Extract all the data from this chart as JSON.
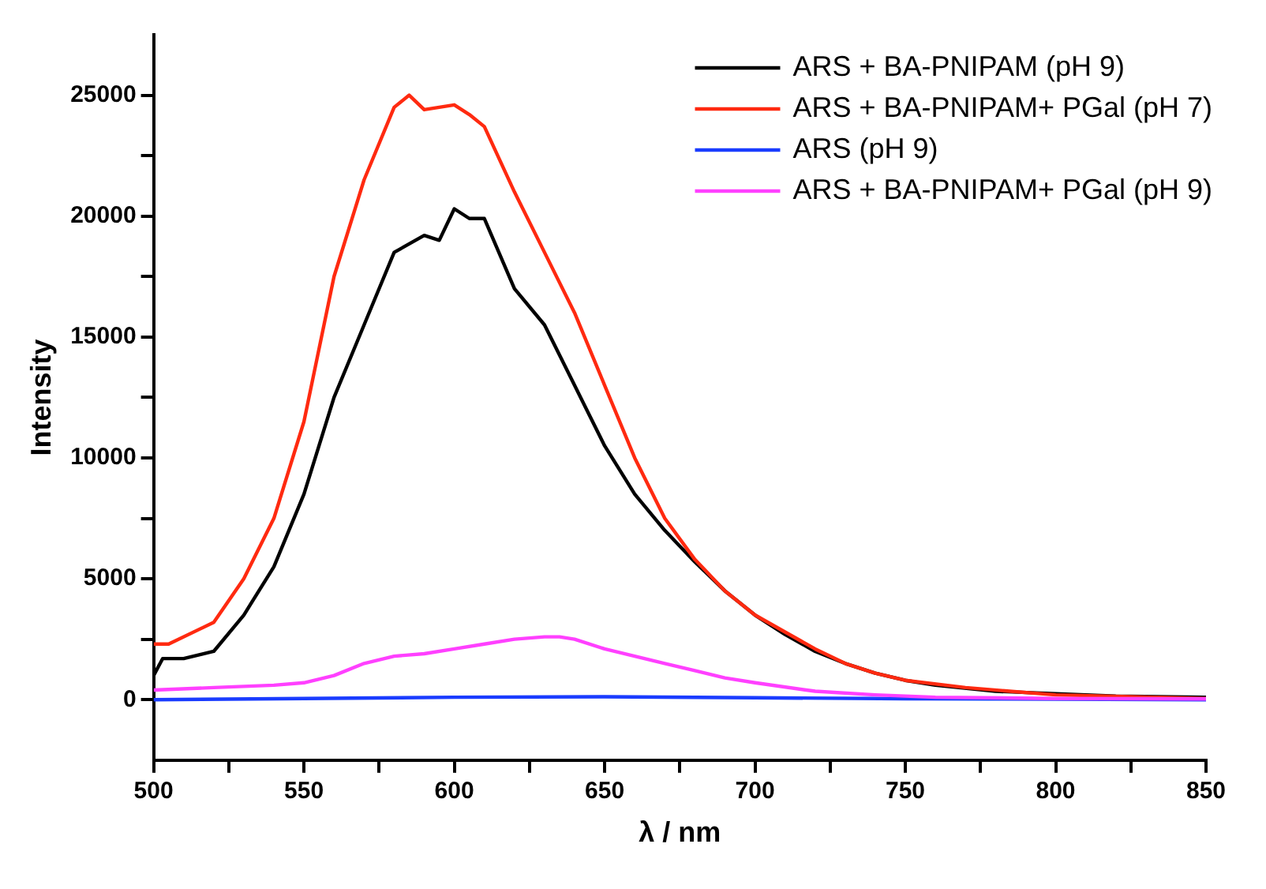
{
  "chart_data": {
    "type": "line",
    "xlabel": "λ / nm",
    "ylabel": "Intensity",
    "xlim": [
      500,
      850
    ],
    "ylim": [
      -2500,
      27500
    ],
    "xticks": [
      500,
      {
        "value": 525,
        "label": null
      },
      550,
      {
        "value": 575,
        "label": null
      },
      600,
      {
        "value": 625,
        "label": null
      },
      650,
      {
        "value": 675,
        "label": null
      },
      700,
      {
        "value": 725,
        "label": null
      },
      750,
      {
        "value": 775,
        "label": null
      },
      800,
      {
        "value": 825,
        "label": null
      },
      850
    ],
    "yticks": [
      0,
      {
        "value": 2500,
        "label": null
      },
      5000,
      {
        "value": 7500,
        "label": null
      },
      10000,
      {
        "value": 12500,
        "label": null
      },
      15000,
      {
        "value": 17500,
        "label": null
      },
      20000,
      {
        "value": 22500,
        "label": null
      },
      25000
    ],
    "grid": false,
    "legend": "top right",
    "marker": "none",
    "line_style": "solid",
    "series": [
      {
        "name": "ARS + BA-PNIPAM (pH 9)",
        "color": "#000000",
        "x": [
          500,
          503,
          510,
          520,
          530,
          540,
          550,
          560,
          570,
          580,
          590,
          595,
          600,
          605,
          610,
          620,
          630,
          640,
          650,
          660,
          670,
          680,
          690,
          700,
          710,
          720,
          730,
          740,
          750,
          760,
          780,
          800,
          820,
          850
        ],
        "values": [
          1000,
          1700,
          1700,
          2000,
          3500,
          5500,
          8500,
          12500,
          15500,
          18500,
          19200,
          19000,
          20300,
          19900,
          19900,
          17000,
          15500,
          13000,
          10500,
          8500,
          7000,
          5700,
          4500,
          3500,
          2700,
          2000,
          1500,
          1100,
          800,
          600,
          350,
          250,
          150,
          100
        ]
      },
      {
        "name": "ARS + BA-PNIPAM+ PGal (pH 7)",
        "color": "#ff2a10",
        "x": [
          500,
          505,
          520,
          530,
          540,
          550,
          560,
          570,
          580,
          585,
          590,
          595,
          600,
          605,
          610,
          620,
          630,
          640,
          650,
          660,
          670,
          680,
          690,
          700,
          710,
          720,
          730,
          740,
          750,
          770,
          800,
          850
        ],
        "values": [
          2300,
          2300,
          3200,
          5000,
          7500,
          11500,
          17500,
          21500,
          24500,
          25000,
          24400,
          24500,
          24600,
          24200,
          23700,
          21000,
          18500,
          16000,
          13000,
          10000,
          7500,
          5800,
          4500,
          3500,
          2800,
          2100,
          1500,
          1100,
          800,
          500,
          200,
          50
        ]
      },
      {
        "name": "ARS (pH 9)",
        "color": "#1a3cff",
        "x": [
          500,
          550,
          600,
          650,
          700,
          750,
          800,
          850
        ],
        "values": [
          0,
          50,
          100,
          120,
          80,
          40,
          20,
          0
        ]
      },
      {
        "name": "ARS + BA-PNIPAM+ PGal (pH 9)",
        "color": "#ff40ff",
        "x": [
          500,
          520,
          540,
          550,
          560,
          570,
          580,
          590,
          600,
          610,
          620,
          630,
          635,
          640,
          650,
          660,
          670,
          680,
          690,
          700,
          720,
          740,
          760,
          800,
          850
        ],
        "values": [
          400,
          500,
          600,
          700,
          1000,
          1500,
          1800,
          1900,
          2100,
          2300,
          2500,
          2600,
          2600,
          2500,
          2100,
          1800,
          1500,
          1200,
          900,
          700,
          350,
          200,
          100,
          50,
          30
        ]
      }
    ]
  }
}
